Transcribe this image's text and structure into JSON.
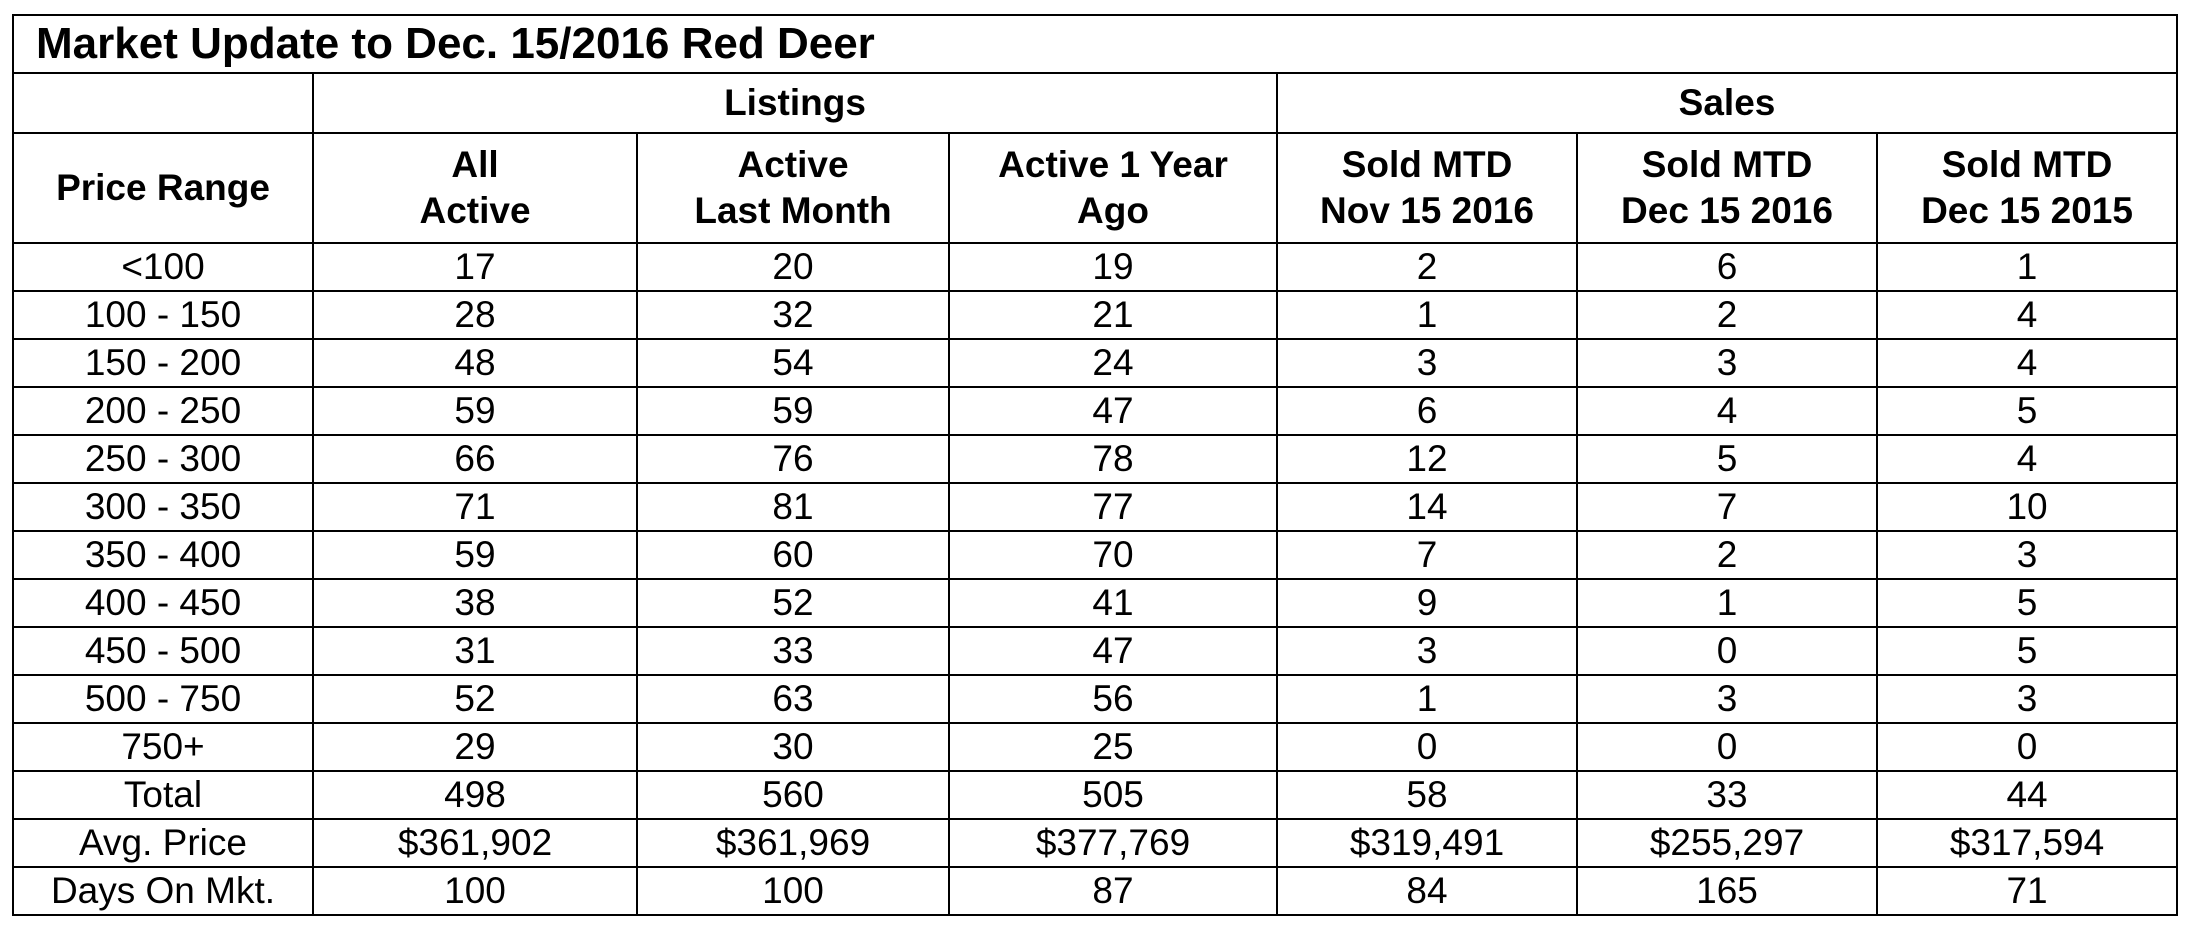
{
  "title": "Market Update to Dec. 15/2016 Red Deer",
  "groups": {
    "listings": "Listings",
    "sales": "Sales"
  },
  "headers": {
    "price_range": "Price Range",
    "all_active": [
      "All",
      "Active"
    ],
    "active_last_month": [
      "Active",
      "Last Month"
    ],
    "active_1_year_ago": [
      "Active 1 Year",
      "Ago"
    ],
    "sold_mtd_nov_2016": [
      "Sold MTD",
      "Nov 15 2016"
    ],
    "sold_mtd_dec_2016": [
      "Sold MTD",
      "Dec 15 2016"
    ],
    "sold_mtd_dec_2015": [
      "Sold MTD",
      "Dec 15 2015"
    ]
  },
  "rows": [
    [
      "<100",
      "17",
      "20",
      "19",
      "2",
      "6",
      "1"
    ],
    [
      "100 - 150",
      "28",
      "32",
      "21",
      "1",
      "2",
      "4"
    ],
    [
      "150 - 200",
      "48",
      "54",
      "24",
      "3",
      "3",
      "4"
    ],
    [
      "200 - 250",
      "59",
      "59",
      "47",
      "6",
      "4",
      "5"
    ],
    [
      "250 - 300",
      "66",
      "76",
      "78",
      "12",
      "5",
      "4"
    ],
    [
      "300 - 350",
      "71",
      "81",
      "77",
      "14",
      "7",
      "10"
    ],
    [
      "350 - 400",
      "59",
      "60",
      "70",
      "7",
      "2",
      "3"
    ],
    [
      "400 - 450",
      "38",
      "52",
      "41",
      "9",
      "1",
      "5"
    ],
    [
      "450 - 500",
      "31",
      "33",
      "47",
      "3",
      "0",
      "5"
    ],
    [
      "500 - 750",
      "52",
      "63",
      "56",
      "1",
      "3",
      "3"
    ],
    [
      "750+",
      "29",
      "30",
      "25",
      "0",
      "0",
      "0"
    ],
    [
      "Total",
      "498",
      "560",
      "505",
      "58",
      "33",
      "44"
    ],
    [
      "Avg. Price",
      "$361,902",
      "$361,969",
      "$377,769",
      "$319,491",
      "$255,297",
      "$317,594"
    ],
    [
      "Days On Mkt.",
      "100",
      "100",
      "87",
      "84",
      "165",
      "71"
    ]
  ]
}
